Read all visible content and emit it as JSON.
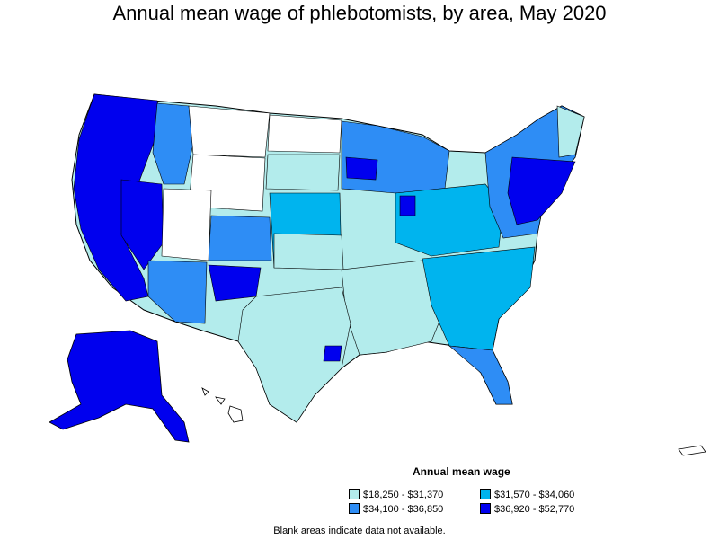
{
  "title": "Annual mean wage of phlebotomists, by area, May 2020",
  "legend": {
    "title": "Annual mean wage",
    "items": [
      {
        "label": "$18,250 - $31,370",
        "color": "#b3ecec"
      },
      {
        "label": "$31,570 - $34,060",
        "color": "#00b4ee"
      },
      {
        "label": "$34,100 - $36,850",
        "color": "#2e8df5"
      },
      {
        "label": "$36,920 - $52,770",
        "color": "#0000ee"
      }
    ]
  },
  "footnote": "Blank areas indicate data not available.",
  "colors": {
    "no_data": "#ffffff",
    "border": "#000000"
  }
}
